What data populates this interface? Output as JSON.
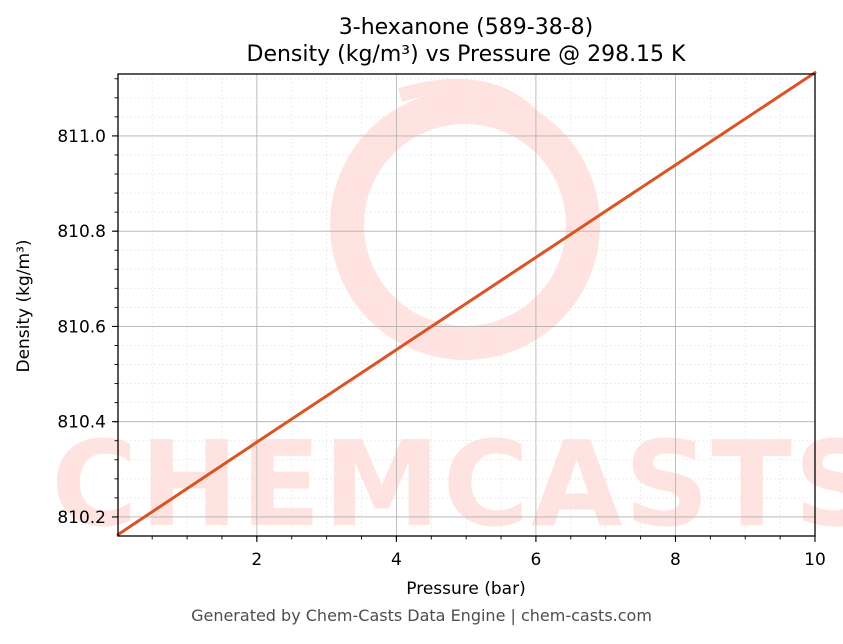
{
  "chart_data": {
    "type": "line",
    "title": "3-hexanone (589-38-8)",
    "subtitle": "Density (kg/m³) vs Pressure @ 298.15 K",
    "xlabel": "Pressure (bar)",
    "ylabel": "Density (kg/m³)",
    "xlim": [
      0.01,
      10
    ],
    "ylim": [
      810.16,
      811.13
    ],
    "xticks": [
      2,
      4,
      6,
      8,
      10
    ],
    "yticks": [
      810.2,
      810.4,
      810.6,
      810.8,
      811.0
    ],
    "xtick_labels": [
      "2",
      "4",
      "6",
      "8",
      "10"
    ],
    "ytick_labels": [
      "810.2",
      "810.4",
      "810.6",
      "810.8",
      "811.0"
    ],
    "grid": true,
    "series": [
      {
        "color": "#d95525",
        "x": [
          0.01,
          2,
          4,
          6,
          8,
          10
        ],
        "y": [
          810.163,
          810.357,
          810.551,
          810.745,
          810.939,
          811.133
        ]
      }
    ]
  },
  "watermark": {
    "text": "CHEMCASTS",
    "color": "#ffe3e0"
  },
  "footer": "Generated by Chem-Casts Data Engine | chem-casts.com"
}
